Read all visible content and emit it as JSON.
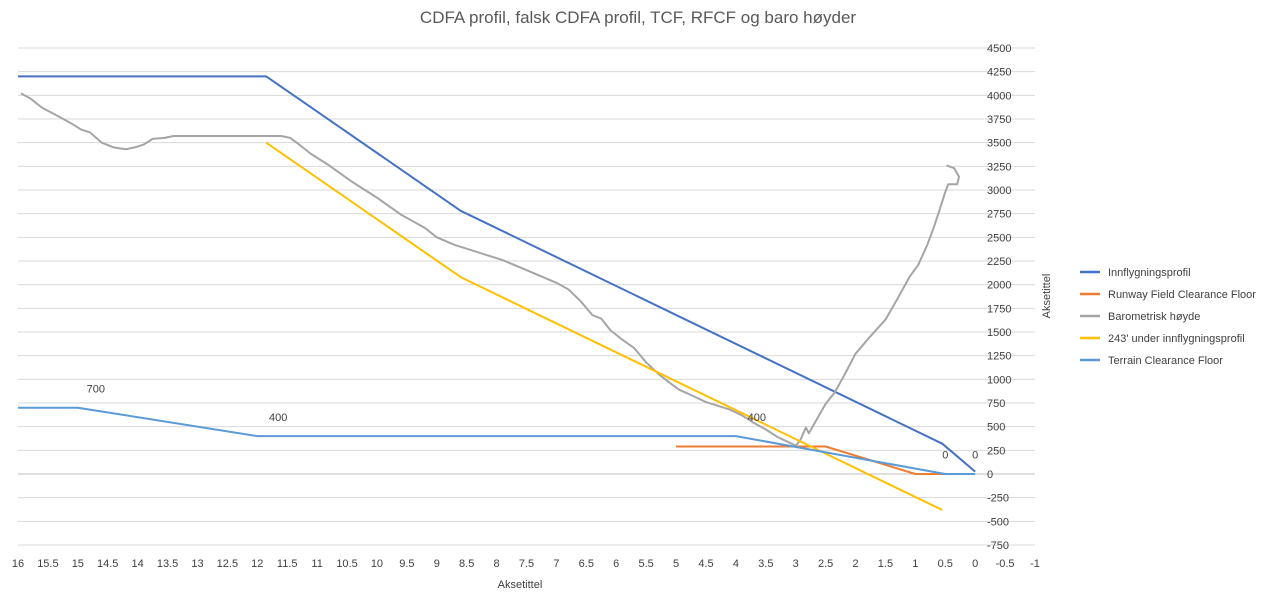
{
  "chart_data": {
    "type": "line",
    "title": "CDFA profil, falsk CDFA profil, TCF, RFCF og baro høyder",
    "xlabel": "Aksetittel",
    "ylabel": "Aksetittel",
    "xlim": [
      16,
      -1
    ],
    "ylim": [
      -750,
      4500
    ],
    "x_ticks": [
      16,
      15.5,
      15,
      14.5,
      14,
      13.5,
      13,
      12.5,
      12,
      11.5,
      11,
      10.5,
      10,
      9.5,
      9,
      8.5,
      8,
      7.5,
      7,
      6.5,
      6,
      5.5,
      5,
      4.5,
      4,
      3.5,
      3,
      2.5,
      2,
      1.5,
      1,
      0.5,
      0,
      -0.5,
      -1
    ],
    "y_ticks": [
      -750,
      -500,
      -250,
      0,
      250,
      500,
      750,
      1000,
      1250,
      1500,
      1750,
      2000,
      2250,
      2500,
      2750,
      3000,
      3250,
      3500,
      3750,
      4000,
      4250,
      4500
    ],
    "y_axis_position": "right",
    "grid": "horizontal",
    "legend_position": "right",
    "series": [
      {
        "name": "Innflygningsprofil",
        "color": "#4472C4",
        "points": [
          [
            16,
            4200
          ],
          [
            11.85,
            4200
          ],
          [
            8.6,
            2780
          ],
          [
            0.55,
            320
          ],
          [
            0,
            25
          ]
        ]
      },
      {
        "name": "Runway Field Clearance Floor",
        "color": "#ED7D31",
        "points": [
          [
            5,
            290
          ],
          [
            2.5,
            290
          ],
          [
            1,
            0
          ],
          [
            0.5,
            0
          ]
        ]
      },
      {
        "name": "Barometrisk høyde",
        "color": "#A5A5A5",
        "points": [
          [
            15.95,
            4020
          ],
          [
            15.8,
            3970
          ],
          [
            15.6,
            3870
          ],
          [
            15.3,
            3770
          ],
          [
            15.1,
            3700
          ],
          [
            14.95,
            3640
          ],
          [
            14.8,
            3610
          ],
          [
            14.6,
            3500
          ],
          [
            14.4,
            3450
          ],
          [
            14.2,
            3430
          ],
          [
            14.05,
            3450
          ],
          [
            13.9,
            3480
          ],
          [
            13.75,
            3540
          ],
          [
            13.55,
            3550
          ],
          [
            13.4,
            3570
          ],
          [
            12,
            3570
          ],
          [
            11.6,
            3570
          ],
          [
            11.45,
            3550
          ],
          [
            11.3,
            3480
          ],
          [
            11.1,
            3380
          ],
          [
            10.8,
            3260
          ],
          [
            10.4,
            3080
          ],
          [
            10,
            2920
          ],
          [
            9.6,
            2740
          ],
          [
            9.2,
            2600
          ],
          [
            9,
            2500
          ],
          [
            8.7,
            2420
          ],
          [
            8.5,
            2380
          ],
          [
            8.2,
            2320
          ],
          [
            7.9,
            2260
          ],
          [
            7.6,
            2180
          ],
          [
            7.3,
            2100
          ],
          [
            7,
            2020
          ],
          [
            6.8,
            1950
          ],
          [
            6.6,
            1830
          ],
          [
            6.4,
            1680
          ],
          [
            6.25,
            1640
          ],
          [
            6.1,
            1520
          ],
          [
            5.9,
            1420
          ],
          [
            5.7,
            1330
          ],
          [
            5.5,
            1180
          ],
          [
            5.3,
            1060
          ],
          [
            5.1,
            960
          ],
          [
            4.95,
            890
          ],
          [
            4.7,
            820
          ],
          [
            4.5,
            760
          ],
          [
            4.3,
            720
          ],
          [
            4.1,
            680
          ],
          [
            3.9,
            620
          ],
          [
            3.7,
            540
          ],
          [
            3.5,
            470
          ],
          [
            3.3,
            390
          ],
          [
            3.1,
            330
          ],
          [
            3,
            300
          ],
          [
            2.92,
            360
          ],
          [
            2.88,
            420
          ],
          [
            2.83,
            490
          ],
          [
            2.78,
            430
          ],
          [
            2.7,
            520
          ],
          [
            2.6,
            630
          ],
          [
            2.5,
            740
          ],
          [
            2.35,
            860
          ],
          [
            2.2,
            1030
          ],
          [
            2,
            1270
          ],
          [
            1.8,
            1420
          ],
          [
            1.5,
            1630
          ],
          [
            1.3,
            1850
          ],
          [
            1.1,
            2080
          ],
          [
            0.95,
            2210
          ],
          [
            0.8,
            2420
          ],
          [
            0.7,
            2590
          ],
          [
            0.6,
            2780
          ],
          [
            0.5,
            2980
          ],
          [
            0.45,
            3060
          ],
          [
            0.3,
            3060
          ],
          [
            0.27,
            3140
          ],
          [
            0.35,
            3230
          ],
          [
            0.48,
            3260
          ]
        ]
      },
      {
        "name": "243' under innflygningsprofil",
        "color": "#FFC000",
        "points": [
          [
            11.85,
            3500
          ],
          [
            8.6,
            2080
          ],
          [
            0.55,
            -380
          ]
        ]
      },
      {
        "name": "Terrain Clearance Floor",
        "color": "#5B9BD5",
        "points": [
          [
            16,
            700
          ],
          [
            15,
            700
          ],
          [
            12,
            400
          ],
          [
            4,
            400
          ],
          [
            0.5,
            0
          ],
          [
            0,
            0
          ]
        ]
      }
    ],
    "annotations": [
      {
        "text": "700",
        "x": 14.7,
        "y": 860
      },
      {
        "text": "400",
        "x": 11.65,
        "y": 560
      },
      {
        "text": "400",
        "x": 3.65,
        "y": 560
      },
      {
        "text": "0",
        "x": 0.5,
        "y": 165
      },
      {
        "text": "0",
        "x": 0,
        "y": 165
      }
    ]
  }
}
